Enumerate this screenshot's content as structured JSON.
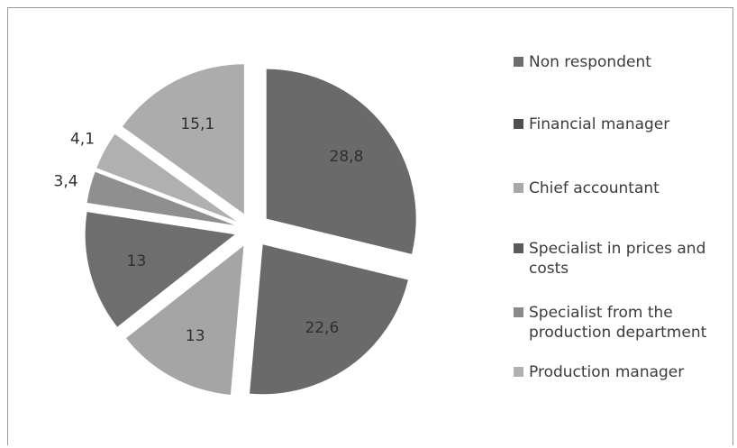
{
  "chart_data": {
    "type": "pie",
    "title": "",
    "exploded": true,
    "series": [
      {
        "label": "Non respondent",
        "value": 0.0,
        "color": "#6e6e6e"
      },
      {
        "label": "Financial manager",
        "value": 28.8,
        "color": "#6a6a6a"
      },
      {
        "label": "Chief accountant",
        "value": 22.6,
        "color": "#6a6a6a"
      },
      {
        "label": "Specialist in prices and costs",
        "value": 13,
        "color": "#a5a5a5"
      },
      {
        "label": "Specialist from the production department",
        "value": 13,
        "color": "#6e6e6e"
      },
      {
        "label": "Production manager",
        "value": 3.4,
        "color": "#8f8f8f"
      },
      {
        "label": "",
        "value": 4.1,
        "color": "#b0b0b0"
      },
      {
        "label": "",
        "value": 15.1,
        "color": "#acacac"
      }
    ],
    "slice_labels": [
      "28,8",
      "22,6",
      "13",
      "13",
      "3,4",
      "4,1",
      "15,1"
    ],
    "legend": {
      "placement": "right",
      "items": [
        {
          "label": "Non respondent",
          "color": "#6e6e6e"
        },
        {
          "label": "Financial manager",
          "color": "#4e4e4e"
        },
        {
          "label": "Chief accountant",
          "color": "#a8a8a8"
        },
        {
          "label": "Specialist in prices and costs",
          "color": "#5a5a5a"
        },
        {
          "label": "Specialist from the production department",
          "color": "#8a8a8a"
        },
        {
          "label": "Production manager",
          "color": "#b0b0b0"
        }
      ]
    }
  }
}
